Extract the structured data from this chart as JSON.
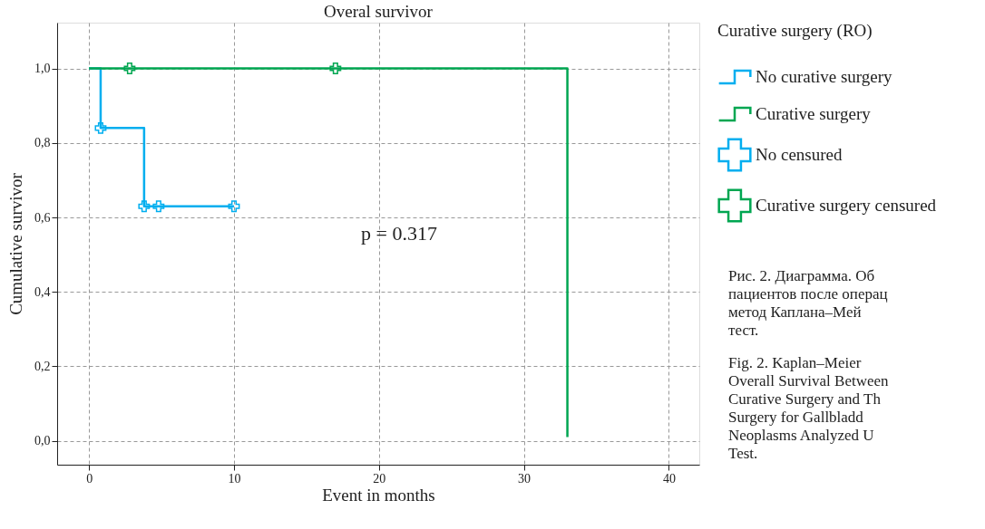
{
  "chart_data": {
    "type": "step",
    "title": "Overal survivor",
    "xlabel": "Event in months",
    "ylabel": "Cumulative survivor",
    "legend_title": "Curative surgery (RO)",
    "xlim": [
      -2.2,
      42.1
    ],
    "ylim": [
      -0.064,
      1.123
    ],
    "xticks": [
      0,
      10,
      20,
      30,
      40
    ],
    "yticks": [
      {
        "value": 0,
        "label": "0,0"
      },
      {
        "value": 0.2,
        "label": "0,2"
      },
      {
        "value": 0.4,
        "label": "0,4"
      },
      {
        "value": 0.6,
        "label": "0,6"
      },
      {
        "value": 0.8,
        "label": "0,8"
      },
      {
        "value": 1,
        "label": "1,0"
      }
    ],
    "grid": true,
    "legend": "top right",
    "series": [
      {
        "name": "No curative surgery",
        "color": "#00aeef",
        "x": [
          0,
          0.8,
          3.8,
          10
        ],
        "values": [
          1,
          0.84,
          0.63,
          0.63
        ]
      },
      {
        "name": "Curative surgery",
        "color": "#00a651",
        "x": [
          0,
          33
        ],
        "values": [
          1,
          0.01
        ]
      },
      {
        "name": "No censured",
        "type": "scatter",
        "marker": "cross",
        "color": "#00aeef",
        "x": [
          0.8,
          3.8,
          4.8,
          10
        ],
        "values": [
          0.84,
          0.63,
          0.63,
          0.63
        ]
      },
      {
        "name": "Curative surgery censured",
        "type": "scatter",
        "marker": "cross",
        "color": "#00a651",
        "x": [
          2.8,
          17
        ],
        "values": [
          1,
          1
        ]
      }
    ],
    "annotations": [
      "p = 0.317",
      "Рис. 2. Диаграмма. Об\nпациентов после операц\nметод Каплана–Мей\nтест.",
      "Fig. 2. Kaplan–Meier\nOverall Survival Between\nCurative Surgery and Th\nSurgery for Gallbladd\nNeoplasms Analyzed U\nTest."
    ]
  }
}
